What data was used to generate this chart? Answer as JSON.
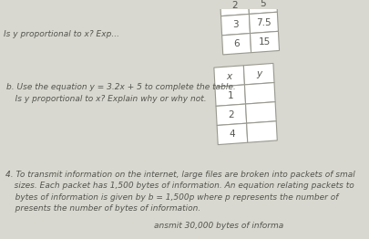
{
  "bg_color": "#d8d8d0",
  "page_color": "#e8e8e2",
  "text_color": "#555550",
  "line_color": "#999990",
  "table1": {
    "x_vals": [
      "2",
      "3",
      "6"
    ],
    "y_vals": [
      "5",
      "7.5",
      "15"
    ]
  },
  "table2": {
    "headers": [
      "x",
      "y"
    ],
    "x_vals": [
      "1",
      "2",
      "4"
    ]
  },
  "text_top": "Is y proportional to x? Exp...",
  "text_b_line1": "b. Use the equation y = 3.2x + 5 to complete the table.",
  "text_b_line2": "   Is y proportional to x? Explain why or why not.",
  "text_4_line1": "4. To transmit information on the internet, large files are broken into packets of smal",
  "text_4_line2": "   sizes. Each packet has 1,500 bytes of information. An equation relating packets to",
  "text_4_line3": "   bytes of information is given by b = 1,500p where p represents the number of",
  "text_4_line4": "   presents the number of bytes of information.",
  "text_bottom": "ansmit 30,000 bytes of informa",
  "font_size_body": 6.5,
  "font_size_table": 7.5,
  "tilt_deg": -3.5
}
